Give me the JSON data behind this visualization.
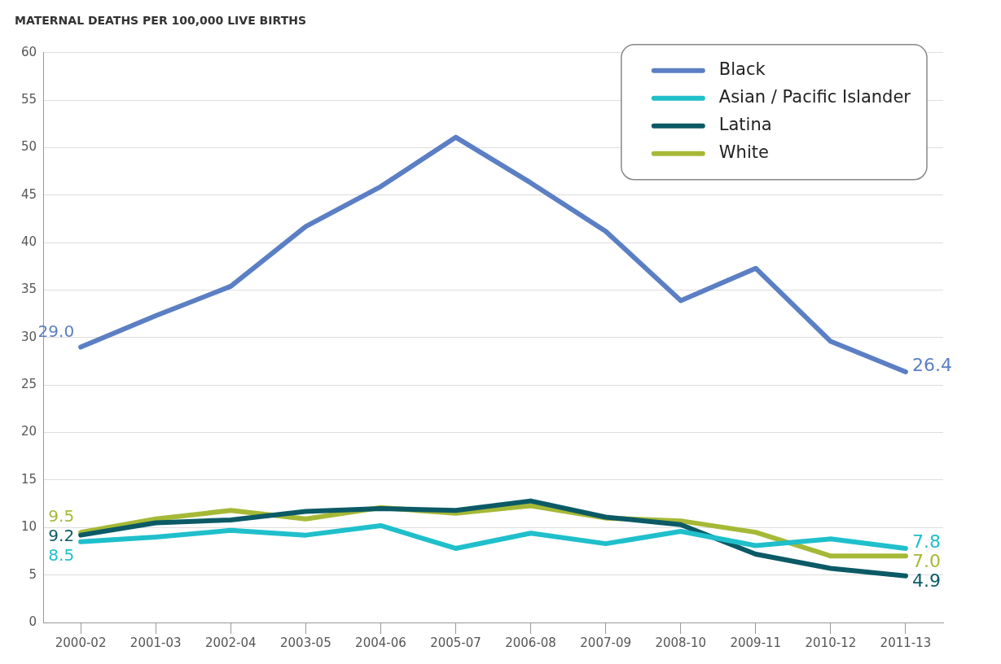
{
  "chart_data": {
    "type": "line",
    "title": "MATERNAL DEATHS PER 100,000 LIVE BIRTHS",
    "categories": [
      "2000-02",
      "2001-03",
      "2002-04",
      "2003-05",
      "2004-06",
      "2005-07",
      "2006-08",
      "2007-09",
      "2008-10",
      "2009-11",
      "2010-12",
      "2011-13"
    ],
    "series": [
      {
        "name": "Black",
        "color": "#5b7fc4",
        "values": [
          29.0,
          32.3,
          35.4,
          41.7,
          45.9,
          51.1,
          46.3,
          41.2,
          33.9,
          37.3,
          29.6,
          26.4
        ],
        "value_labels": [
          "29.0",
          null,
          null,
          null,
          null,
          null,
          null,
          null,
          null,
          null,
          null,
          "26.4"
        ]
      },
      {
        "name": "Asian / Pacific Islander",
        "color": "#1fbfcb",
        "values": [
          8.5,
          9.0,
          9.7,
          9.2,
          10.2,
          7.8,
          9.4,
          8.3,
          9.6,
          8.1,
          8.8,
          7.8
        ],
        "value_labels": [
          "8.5",
          null,
          null,
          null,
          null,
          null,
          null,
          null,
          null,
          null,
          null,
          "7.8"
        ]
      },
      {
        "name": "Latina",
        "color": "#0b5a66",
        "values": [
          9.2,
          10.5,
          10.8,
          11.7,
          12.0,
          11.8,
          12.8,
          11.1,
          10.3,
          7.2,
          5.7,
          4.9
        ],
        "value_labels": [
          "9.2",
          null,
          null,
          null,
          null,
          null,
          null,
          null,
          null,
          null,
          null,
          "4.9"
        ]
      },
      {
        "name": "White",
        "color": "#a6b936",
        "values": [
          9.5,
          10.9,
          11.8,
          10.9,
          12.1,
          11.5,
          12.3,
          11.0,
          10.7,
          9.5,
          7.0,
          7.0
        ],
        "value_labels": [
          "9.5",
          null,
          null,
          null,
          null,
          null,
          null,
          null,
          null,
          null,
          null,
          "7.0"
        ]
      }
    ],
    "ylim": [
      0,
      60
    ],
    "yticks": [
      0,
      5,
      10,
      15,
      20,
      25,
      30,
      35,
      40,
      45,
      50,
      55,
      60
    ],
    "grid": "y",
    "legend": "top right",
    "marker": "none",
    "line_style": "solid"
  }
}
